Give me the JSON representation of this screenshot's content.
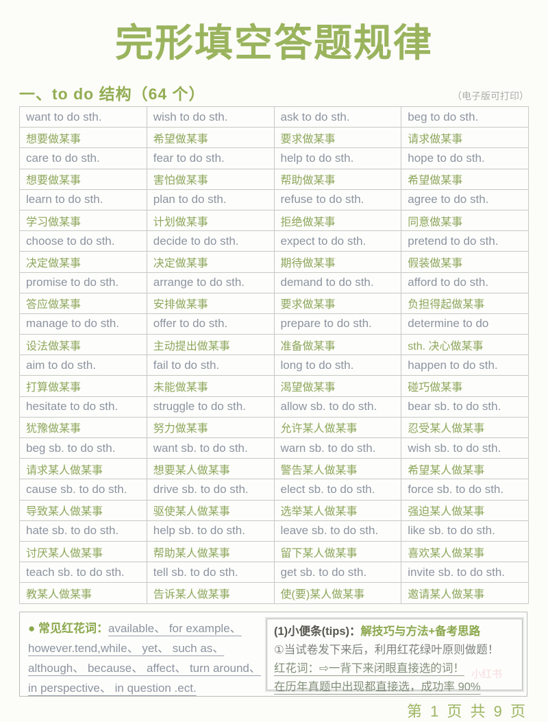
{
  "title": "完形填空答题规律",
  "section": {
    "heading": "一、to do 结构（64 个）",
    "note": "（电子版可打印）"
  },
  "table": {
    "pairs": [
      {
        "en": [
          "want to do sth.",
          "wish to do sth.",
          "ask to do sth.",
          "beg to do sth."
        ],
        "cn": [
          "想要做某事",
          "希望做某事",
          "要求做某事",
          "请求做某事"
        ]
      },
      {
        "en": [
          "care to do sth.",
          "fear to do sth.",
          "help to do sth.",
          "hope to do sth."
        ],
        "cn": [
          "想要做某事",
          "害怕做某事",
          "帮助做某事",
          "希望做某事"
        ]
      },
      {
        "en": [
          "learn to do sth.",
          "plan to do sth.",
          "refuse to do sth.",
          "agree to do sth."
        ],
        "cn": [
          "学习做某事",
          "计划做某事",
          "拒绝做某事",
          "同意做某事"
        ]
      },
      {
        "en": [
          "choose to do sth.",
          "decide to do sth.",
          "expect to do sth.",
          "pretend to do sth."
        ],
        "cn": [
          "决定做某事",
          "决定做某事",
          "期待做某事",
          "假装做某事"
        ]
      },
      {
        "en": [
          "promise to do sth.",
          "arrange to do sth.",
          "demand to do sth.",
          "afford to do sth."
        ],
        "cn": [
          "答应做某事",
          "安排做某事",
          "要求做某事",
          "负担得起做某事"
        ]
      },
      {
        "en": [
          "manage to do sth.",
          "offer to do sth.",
          "prepare to do sth.",
          "determine to do"
        ],
        "cn": [
          "设法做某事",
          "主动提出做某事",
          "准备做某事",
          "sth. 决心做某事"
        ]
      },
      {
        "en": [
          "aim to do sth.",
          "fail to do sth.",
          "long to do sth.",
          "happen to do sth."
        ],
        "cn": [
          "打算做某事",
          "未能做某事",
          "渴望做某事",
          "碰巧做某事"
        ]
      },
      {
        "en": [
          "hesitate to do sth.",
          "struggle to do sth.",
          "allow sb. to do sth.",
          "bear sb. to do sth."
        ],
        "cn": [
          "犹豫做某事",
          "努力做某事",
          "允许某人做某事",
          "忍受某人做某事"
        ]
      },
      {
        "en": [
          "beg sb. to do sth.",
          "want sb. to do sth.",
          "warn sb. to do sth.",
          "wish sb. to do sth."
        ],
        "cn": [
          "请求某人做某事",
          "想要某人做某事",
          "警告某人做某事",
          "希望某人做某事"
        ]
      },
      {
        "en": [
          "cause sb. to do sth.",
          "drive sb. to do sth.",
          "elect sb. to do sth.",
          "force sb. to do sth."
        ],
        "cn": [
          "导致某人做某事",
          "驱使某人做某事",
          "选举某人做某事",
          "强迫某人做某事"
        ]
      },
      {
        "en": [
          "hate sb. to do sth.",
          "help sb. to do sth.",
          "leave sb. to do sth.",
          "like sb. to do sth."
        ],
        "cn": [
          "讨厌某人做某事",
          "帮助某人做某事",
          "留下某人做某事",
          "喜欢某人做某事"
        ]
      },
      {
        "en": [
          "teach sb. to do sth.",
          "tell sb. to do sth.",
          "get sb. to do sth.",
          "invite sb. to do sth."
        ],
        "cn": [
          "教某人做某事",
          "告诉某人做某事",
          "使(要)某人做某事",
          "邀请某人做某事"
        ]
      }
    ]
  },
  "notes": {
    "red_flower": {
      "label": "● 常见红花词：",
      "words": "available、 for example、 however.tend,while、 yet、 such as、 although、 because、 affect、 turn around、 in perspective、 in question .ect."
    },
    "tips": {
      "heading_prefix": "(1)小便条(tips)：",
      "heading_highlight": "解技巧与方法+备考思路",
      "line1": "①当试卷发下来后，利用红花绿叶原则做题！",
      "line2": "红花词：⇨一背下来闭眼直接选的词！",
      "line3": "在历年真题中出现都直接选，成功率 90%"
    }
  },
  "footer": {
    "page_info": "第 1 页 共 9 页"
  },
  "watermark": "小红书",
  "colors": {
    "accent_green": "#9ab45e",
    "table_chinese_green": "#8ea75c",
    "table_english_gray": "#8c94a0",
    "heading_green": "#93ad53",
    "highlight_green": "#8ca84e",
    "border_gray": "#c6c9c4",
    "note_gray": "#abaca8"
  }
}
